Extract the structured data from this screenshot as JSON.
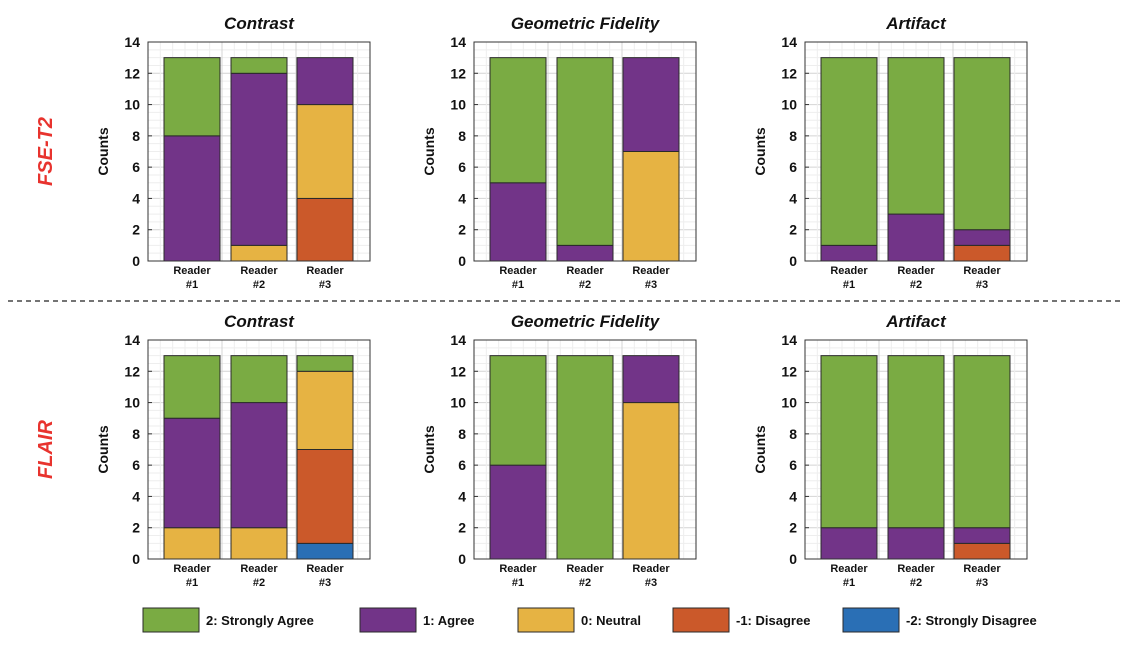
{
  "legend": [
    {
      "key": "sa",
      "label": "2: Strongly Agree",
      "color": "#7aab43"
    },
    {
      "key": "a",
      "label": "1: Agree",
      "color": "#723488"
    },
    {
      "key": "n",
      "label": "0: Neutral",
      "color": "#e6b343"
    },
    {
      "key": "d",
      "label": "-1: Disagree",
      "color": "#cb592a"
    },
    {
      "key": "sd",
      "label": "-2: Strongly Disagree",
      "color": "#2a6fb5"
    }
  ],
  "rows": [
    {
      "label": "FSE-T2"
    },
    {
      "label": "FLAIR"
    }
  ],
  "chart_data": [
    {
      "type": "bar",
      "stacked": true,
      "row": "FSE-T2",
      "title": "Contrast",
      "ylabel": "Counts",
      "ylim": [
        0,
        14
      ],
      "categories": [
        "Reader #1",
        "Reader #2",
        "Reader #3"
      ],
      "category_lines": [
        [
          "Reader",
          "#1"
        ],
        [
          "Reader",
          "#2"
        ],
        [
          "Reader",
          "#3"
        ]
      ],
      "series": [
        {
          "name": "-2: Strongly Disagree",
          "values": [
            0,
            0,
            0
          ]
        },
        {
          "name": "-1: Disagree",
          "values": [
            0,
            0,
            4
          ]
        },
        {
          "name": "0: Neutral",
          "values": [
            0,
            1,
            6
          ]
        },
        {
          "name": "1: Agree",
          "values": [
            8,
            11,
            3
          ]
        },
        {
          "name": "2: Strongly Agree",
          "values": [
            5,
            1,
            0
          ]
        }
      ]
    },
    {
      "type": "bar",
      "stacked": true,
      "row": "FSE-T2",
      "title": "Geometric Fidelity",
      "ylabel": "Counts",
      "ylim": [
        0,
        14
      ],
      "categories": [
        "Reader #1",
        "Reader #2",
        "Reader #3"
      ],
      "category_lines": [
        [
          "Reader",
          "#1"
        ],
        [
          "Reader",
          "#2"
        ],
        [
          "Reader",
          "#3"
        ]
      ],
      "series": [
        {
          "name": "-2: Strongly Disagree",
          "values": [
            0,
            0,
            0
          ]
        },
        {
          "name": "-1: Disagree",
          "values": [
            0,
            0,
            0
          ]
        },
        {
          "name": "0: Neutral",
          "values": [
            0,
            0,
            7
          ]
        },
        {
          "name": "1: Agree",
          "values": [
            5,
            1,
            6
          ]
        },
        {
          "name": "2: Strongly Agree",
          "values": [
            8,
            12,
            0
          ]
        }
      ]
    },
    {
      "type": "bar",
      "stacked": true,
      "row": "FSE-T2",
      "title": "Artifact",
      "ylabel": "Counts",
      "ylim": [
        0,
        14
      ],
      "categories": [
        "Reader #1",
        "Reader #2",
        "Reader #3"
      ],
      "category_lines": [
        [
          "Reader",
          "#1"
        ],
        [
          "Reader",
          "#2"
        ],
        [
          "Reader",
          "#3"
        ]
      ],
      "series": [
        {
          "name": "-2: Strongly Disagree",
          "values": [
            0,
            0,
            0
          ]
        },
        {
          "name": "-1: Disagree",
          "values": [
            0,
            0,
            1
          ]
        },
        {
          "name": "0: Neutral",
          "values": [
            0,
            0,
            0
          ]
        },
        {
          "name": "1: Agree",
          "values": [
            1,
            3,
            1
          ]
        },
        {
          "name": "2: Strongly Agree",
          "values": [
            12,
            10,
            11
          ]
        }
      ]
    },
    {
      "type": "bar",
      "stacked": true,
      "row": "FLAIR",
      "title": "Contrast",
      "ylabel": "Counts",
      "ylim": [
        0,
        14
      ],
      "categories": [
        "Reader #1",
        "Reader #2",
        "Reader #3"
      ],
      "category_lines": [
        [
          "Reader",
          "#1"
        ],
        [
          "Reader",
          "#2"
        ],
        [
          "Reader",
          "#3"
        ]
      ],
      "series": [
        {
          "name": "-2: Strongly Disagree",
          "values": [
            0,
            0,
            1
          ]
        },
        {
          "name": "-1: Disagree",
          "values": [
            0,
            0,
            6
          ]
        },
        {
          "name": "0: Neutral",
          "values": [
            2,
            2,
            5
          ]
        },
        {
          "name": "1: Agree",
          "values": [
            7,
            8,
            0
          ]
        },
        {
          "name": "2: Strongly Agree",
          "values": [
            4,
            3,
            1
          ]
        }
      ]
    },
    {
      "type": "bar",
      "stacked": true,
      "row": "FLAIR",
      "title": "Geometric Fidelity",
      "ylabel": "Counts",
      "ylim": [
        0,
        14
      ],
      "categories": [
        "Reader #1",
        "Reader #2",
        "Reader #3"
      ],
      "category_lines": [
        [
          "Reader",
          "#1"
        ],
        [
          "Reader",
          "#2"
        ],
        [
          "Reader",
          "#3"
        ]
      ],
      "series": [
        {
          "name": "-2: Strongly Disagree",
          "values": [
            0,
            0,
            0
          ]
        },
        {
          "name": "-1: Disagree",
          "values": [
            0,
            0,
            0
          ]
        },
        {
          "name": "0: Neutral",
          "values": [
            0,
            0,
            10
          ]
        },
        {
          "name": "1: Agree",
          "values": [
            6,
            0,
            3
          ]
        },
        {
          "name": "2: Strongly Agree",
          "values": [
            7,
            13,
            0
          ]
        }
      ]
    },
    {
      "type": "bar",
      "stacked": true,
      "row": "FLAIR",
      "title": "Artifact",
      "ylabel": "Counts",
      "ylim": [
        0,
        14
      ],
      "categories": [
        "Reader #1",
        "Reader #2",
        "Reader #3"
      ],
      "category_lines": [
        [
          "Reader",
          "#1"
        ],
        [
          "Reader",
          "#2"
        ],
        [
          "Reader",
          "#3"
        ]
      ],
      "series": [
        {
          "name": "-2: Strongly Disagree",
          "values": [
            0,
            0,
            0
          ]
        },
        {
          "name": "-1: Disagree",
          "values": [
            0,
            0,
            1
          ]
        },
        {
          "name": "0: Neutral",
          "values": [
            0,
            0,
            0
          ]
        },
        {
          "name": "1: Agree",
          "values": [
            2,
            2,
            1
          ]
        },
        {
          "name": "2: Strongly Agree",
          "values": [
            11,
            11,
            11
          ]
        }
      ]
    }
  ]
}
